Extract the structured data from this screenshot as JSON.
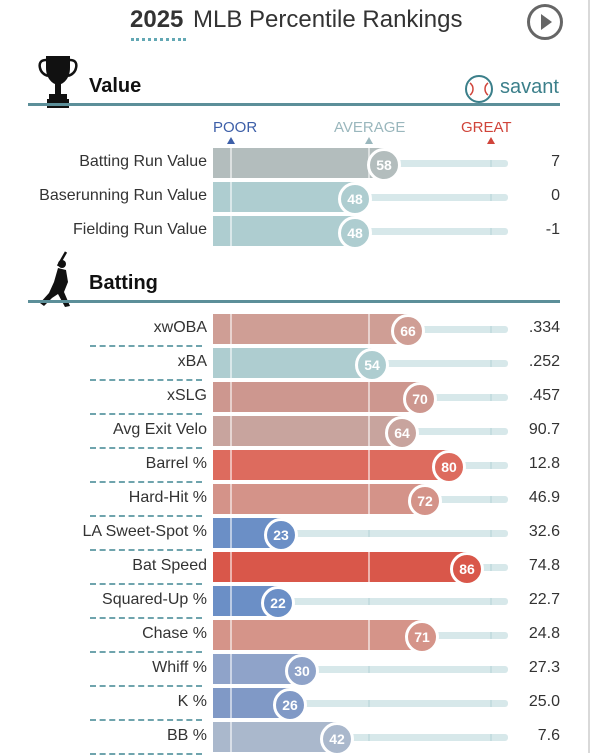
{
  "header": {
    "year": "2025",
    "title": "MLB Percentile Rankings"
  },
  "scale": {
    "poor": "POOR",
    "average": "AVERAGE",
    "great": "GREAT"
  },
  "brand": {
    "name": "savant"
  },
  "sections": [
    {
      "title": "Value",
      "icon": "trophy-icon",
      "metrics": [
        {
          "label": "Batting Run Value",
          "pct": 58,
          "value": "7",
          "color": "#b3bdbd"
        },
        {
          "label": "Baserunning Run Value",
          "pct": 48,
          "value": "0",
          "color": "#aecdd0"
        },
        {
          "label": "Fielding Run Value",
          "pct": 48,
          "value": "-1",
          "color": "#aecdd0"
        }
      ]
    },
    {
      "title": "Batting",
      "icon": "batter-icon",
      "metrics": [
        {
          "label": "xwOBA",
          "pct": 66,
          "value": ".334",
          "color": "#cf9e95"
        },
        {
          "label": "xBA",
          "pct": 54,
          "value": ".252",
          "color": "#aecdd0"
        },
        {
          "label": "xSLG",
          "pct": 70,
          "value": ".457",
          "color": "#cd978f"
        },
        {
          "label": "Avg Exit Velo",
          "pct": 64,
          "value": "90.7",
          "color": "#c8a49e"
        },
        {
          "label": "Barrel %",
          "pct": 80,
          "value": "12.8",
          "color": "#dd6b5e"
        },
        {
          "label": "Hard-Hit %",
          "pct": 72,
          "value": "46.9",
          "color": "#d49389"
        },
        {
          "label": "LA Sweet-Spot %",
          "pct": 23,
          "value": "32.6",
          "color": "#6b8fc6"
        },
        {
          "label": "Bat Speed",
          "pct": 86,
          "value": "74.8",
          "color": "#d9574a"
        },
        {
          "label": "Squared-Up %",
          "pct": 22,
          "value": "22.7",
          "color": "#6b8fc6"
        },
        {
          "label": "Chase %",
          "pct": 71,
          "value": "24.8",
          "color": "#d59489"
        },
        {
          "label": "Whiff %",
          "pct": 30,
          "value": "27.3",
          "color": "#8fa3c9"
        },
        {
          "label": "K %",
          "pct": 26,
          "value": "25.0",
          "color": "#8099c6"
        },
        {
          "label": "BB %",
          "pct": 42,
          "value": "7.6",
          "color": "#aab8cc"
        }
      ]
    }
  ],
  "colors": {
    "accent": "#5c8f99",
    "poor": "#3d5fa8",
    "average": "#9ab7bd",
    "great": "#d0443a"
  }
}
